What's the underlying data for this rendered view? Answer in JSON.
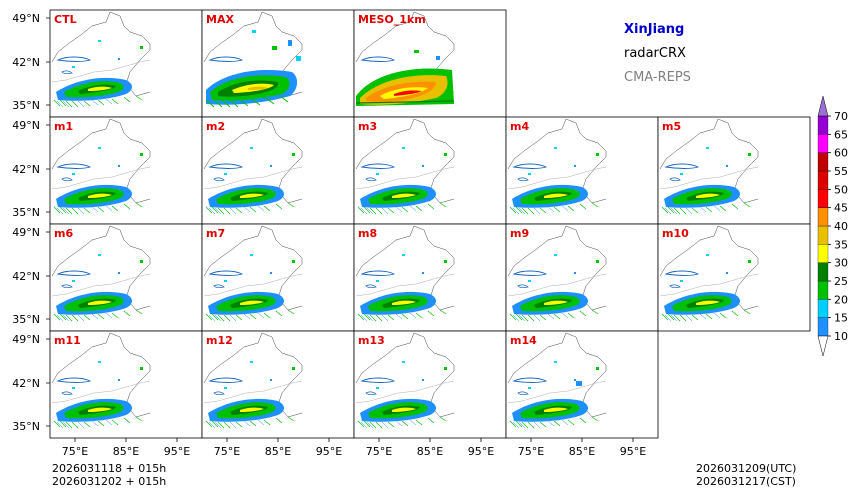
{
  "legend": {
    "region": "XinJiang",
    "variable": "radarCRX",
    "model": "CMA-REPS"
  },
  "panels": {
    "row0": [
      "CTL",
      "MAX",
      "MESO_1km"
    ],
    "row1": [
      "m1",
      "m2",
      "m3",
      "m4",
      "m5"
    ],
    "row2": [
      "m6",
      "m7",
      "m8",
      "m9",
      "m10"
    ],
    "row3": [
      "m11",
      "m12",
      "m13",
      "m14"
    ]
  },
  "axes": {
    "lat_ticks": [
      "49°N",
      "42°N",
      "35°N"
    ],
    "lon_ticks": [
      "75°E",
      "85°E",
      "95°E"
    ]
  },
  "colorbar": {
    "levels": [
      10,
      15,
      20,
      25,
      30,
      35,
      40,
      45,
      50,
      55,
      60,
      65,
      70
    ],
    "colors": [
      "#1e90ff",
      "#00d0ff",
      "#00c000",
      "#008000",
      "#ffff00",
      "#e8c000",
      "#ff9000",
      "#ff0000",
      "#dd0000",
      "#c00000",
      "#ff00ff",
      "#9400d3"
    ],
    "over_color": "#9a6fd6",
    "under_color": "#ffffff"
  },
  "footer": {
    "init_line1": "2026031118 + 015h",
    "init_line2": "2026031202 + 015h",
    "valid_utc": "2026031209(UTC)",
    "valid_cst": "2026031217(CST)"
  }
}
